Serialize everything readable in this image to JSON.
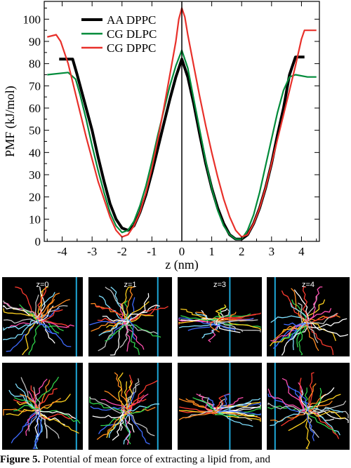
{
  "chart_data": {
    "type": "line",
    "title": "",
    "xlabel": "z (nm)",
    "ylabel": "PMF (kJ/mol)",
    "xlim": [
      -4.6,
      4.6
    ],
    "ylim": [
      0,
      108
    ],
    "xticks": [
      -4,
      -3,
      -2,
      -1,
      0,
      1,
      2,
      3,
      4
    ],
    "yticks": [
      0,
      10,
      20,
      30,
      40,
      50,
      60,
      70,
      80,
      90,
      100
    ],
    "legend_position": "top-left",
    "grid": false,
    "series": [
      {
        "name": "AA DPPC",
        "color": "#000000",
        "points": [
          [
            -4.1,
            82
          ],
          [
            -3.65,
            82
          ],
          [
            -3.5,
            75
          ],
          [
            -3.2,
            60
          ],
          [
            -3.0,
            50
          ],
          [
            -2.8,
            38
          ],
          [
            -2.6,
            27
          ],
          [
            -2.4,
            17
          ],
          [
            -2.2,
            10
          ],
          [
            -2.0,
            6
          ],
          [
            -1.8,
            5
          ],
          [
            -1.6,
            7
          ],
          [
            -1.4,
            13
          ],
          [
            -1.2,
            21
          ],
          [
            -1.0,
            31
          ],
          [
            -0.8,
            42
          ],
          [
            -0.6,
            53
          ],
          [
            -0.4,
            64
          ],
          [
            -0.2,
            74
          ],
          [
            0.0,
            82
          ],
          [
            0.2,
            74
          ],
          [
            0.4,
            62
          ],
          [
            0.6,
            48
          ],
          [
            0.8,
            35
          ],
          [
            1.0,
            24
          ],
          [
            1.2,
            15
          ],
          [
            1.4,
            8
          ],
          [
            1.6,
            3
          ],
          [
            1.8,
            1
          ],
          [
            2.0,
            1
          ],
          [
            2.2,
            3
          ],
          [
            2.4,
            8
          ],
          [
            2.6,
            15
          ],
          [
            2.8,
            24
          ],
          [
            3.0,
            35
          ],
          [
            3.2,
            48
          ],
          [
            3.4,
            60
          ],
          [
            3.6,
            75
          ],
          [
            3.8,
            83
          ],
          [
            4.1,
            83
          ]
        ]
      },
      {
        "name": "CG DLPC",
        "color": "#008b3a",
        "points": [
          [
            -4.5,
            75
          ],
          [
            -3.8,
            76
          ],
          [
            -3.55,
            73
          ],
          [
            -3.4,
            66
          ],
          [
            -3.2,
            55
          ],
          [
            -3.0,
            43
          ],
          [
            -2.8,
            32
          ],
          [
            -2.6,
            22
          ],
          [
            -2.4,
            13
          ],
          [
            -2.2,
            7
          ],
          [
            -2.0,
            4
          ],
          [
            -1.8,
            5
          ],
          [
            -1.6,
            9
          ],
          [
            -1.4,
            16
          ],
          [
            -1.2,
            25
          ],
          [
            -1.0,
            36
          ],
          [
            -0.8,
            48
          ],
          [
            -0.6,
            59
          ],
          [
            -0.4,
            70
          ],
          [
            -0.2,
            79
          ],
          [
            0.0,
            86
          ],
          [
            0.2,
            78
          ],
          [
            0.4,
            64
          ],
          [
            0.6,
            50
          ],
          [
            0.8,
            36
          ],
          [
            1.0,
            24
          ],
          [
            1.2,
            14
          ],
          [
            1.4,
            7
          ],
          [
            1.6,
            3
          ],
          [
            1.8,
            1
          ],
          [
            2.0,
            1
          ],
          [
            2.2,
            5
          ],
          [
            2.4,
            12
          ],
          [
            2.6,
            22
          ],
          [
            2.8,
            34
          ],
          [
            3.0,
            46
          ],
          [
            3.2,
            58
          ],
          [
            3.4,
            68
          ],
          [
            3.6,
            74
          ],
          [
            3.8,
            75
          ],
          [
            4.2,
            74
          ],
          [
            4.5,
            74
          ]
        ]
      },
      {
        "name": "CG DPPC",
        "color": "#e8302a",
        "points": [
          [
            -4.5,
            92
          ],
          [
            -4.2,
            93
          ],
          [
            -4.05,
            90
          ],
          [
            -3.8,
            80
          ],
          [
            -3.6,
            69
          ],
          [
            -3.4,
            58
          ],
          [
            -3.2,
            47
          ],
          [
            -3.0,
            37
          ],
          [
            -2.8,
            27
          ],
          [
            -2.6,
            19
          ],
          [
            -2.4,
            11
          ],
          [
            -2.2,
            5
          ],
          [
            -2.0,
            2
          ],
          [
            -1.8,
            3
          ],
          [
            -1.6,
            7
          ],
          [
            -1.4,
            13
          ],
          [
            -1.2,
            22
          ],
          [
            -1.0,
            33
          ],
          [
            -0.8,
            46
          ],
          [
            -0.6,
            60
          ],
          [
            -0.4,
            75
          ],
          [
            -0.2,
            90
          ],
          [
            -0.1,
            100
          ],
          [
            0.0,
            105
          ],
          [
            0.1,
            101
          ],
          [
            0.2,
            93
          ],
          [
            0.4,
            79
          ],
          [
            0.6,
            65
          ],
          [
            0.8,
            52
          ],
          [
            1.0,
            40
          ],
          [
            1.2,
            29
          ],
          [
            1.4,
            19
          ],
          [
            1.6,
            11
          ],
          [
            1.8,
            5
          ],
          [
            2.0,
            2
          ],
          [
            2.2,
            3
          ],
          [
            2.4,
            8
          ],
          [
            2.6,
            15
          ],
          [
            2.8,
            24
          ],
          [
            3.0,
            35
          ],
          [
            3.2,
            46
          ],
          [
            3.4,
            57
          ],
          [
            3.6,
            68
          ],
          [
            3.8,
            79
          ],
          [
            4.0,
            91
          ],
          [
            4.1,
            95
          ],
          [
            4.5,
            95
          ]
        ]
      }
    ]
  },
  "panels": {
    "labels": [
      "z=0",
      "z=1",
      "z=3",
      "z=4"
    ]
  },
  "caption": {
    "label": "Figure 5.",
    "text": "Potential of mean force of extracting a lipid from, and"
  }
}
